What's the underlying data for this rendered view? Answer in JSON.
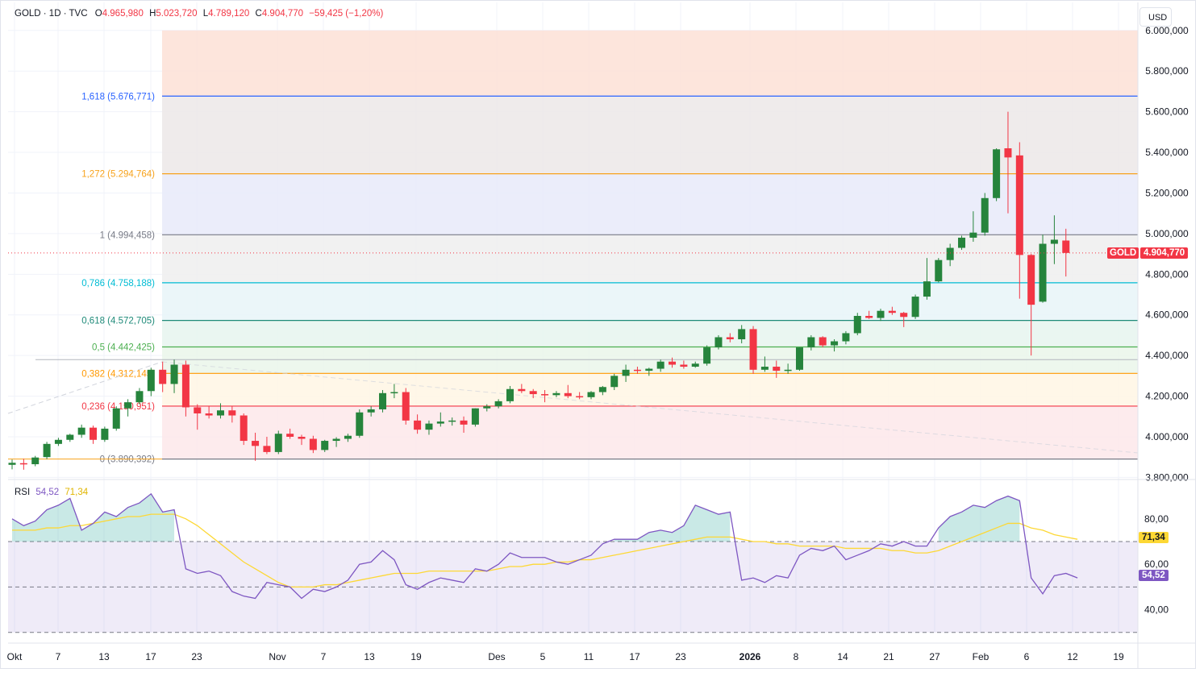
{
  "legend": {
    "symbol": "GOLD · 1D · TVC",
    "o_label": "O",
    "o_value": "4.965,980",
    "h_label": "H",
    "h_value": "5.023,720",
    "l_label": "L",
    "l_value": "4.789,120",
    "c_label": "C",
    "c_value": "4.904,770",
    "change": "−59,425 (−1,20%)"
  },
  "rsi_legend": {
    "name": "RSI",
    "rsi_value": "54,52",
    "ma_value": "71,34"
  },
  "currency": "USD",
  "price_badge": {
    "label": "GOLD",
    "value": "4.904,770"
  },
  "colors": {
    "up": "#26843c",
    "down": "#f23645",
    "rsi_line": "#7e57c2",
    "rsi_ma": "#fdd835",
    "last_price": "#f23645"
  },
  "chart_data": [
    {
      "type": "candlestick",
      "symbol": "GOLD",
      "timeframe": "1D",
      "y_axis_ticks": [
        "3.800,000",
        "4.000,000",
        "4.200,000",
        "4.400,000",
        "4.600,000",
        "4.800,000",
        "5.000,000",
        "5.200,000",
        "5.400,000",
        "5.600,000",
        "5.800,000",
        "6.000,000"
      ],
      "y_tick_values": [
        3800,
        4000,
        4200,
        4400,
        4600,
        4800,
        5000,
        5200,
        5400,
        5600,
        5800,
        6000
      ],
      "ylim": [
        3790,
        6000
      ],
      "x_axis_labels": [
        "Okt",
        "7",
        "13",
        "17",
        "23",
        "Nov",
        "7",
        "13",
        "19",
        "Des",
        "5",
        "11",
        "17",
        "23",
        "2026",
        "8",
        "14",
        "21",
        "27",
        "Feb",
        "6",
        "12",
        "19"
      ],
      "fibonacci_levels": [
        {
          "label": "1,618 (5.676,771)",
          "value": 5676.771,
          "color": "#2962ff"
        },
        {
          "label": "1,272 (5.294,764)",
          "value": 5294.764,
          "color": "#f7a21b"
        },
        {
          "label": "1 (4.994,458)",
          "value": 4994.458,
          "color": "#787b86"
        },
        {
          "label": "0,786 (4.758,188)",
          "value": 4758.188,
          "color": "#00bcd4"
        },
        {
          "label": "0,618 (4.572,705)",
          "value": 4572.705,
          "color": "#1e8a79"
        },
        {
          "label": "0,5 (4.442,425)",
          "value": 4442.425,
          "color": "#4caf50"
        },
        {
          "label": "0,382 (4.312,145)",
          "value": 4312.145,
          "color": "#ff9800"
        },
        {
          "label": "0,236 (4.150,951)",
          "value": 4150.951,
          "color": "#f23645"
        },
        {
          "label": "0 (3.890,392)",
          "value": 3890.392,
          "color": "#787b86"
        }
      ],
      "last_price": 4904.77,
      "candles": [
        {
          "o": 3862,
          "h": 3888,
          "l": 3840,
          "c": 3872
        },
        {
          "o": 3870,
          "h": 3892,
          "l": 3838,
          "c": 3865
        },
        {
          "o": 3865,
          "h": 3906,
          "l": 3855,
          "c": 3898
        },
        {
          "o": 3900,
          "h": 3975,
          "l": 3890,
          "c": 3965
        },
        {
          "o": 3965,
          "h": 3995,
          "l": 3955,
          "c": 3985
        },
        {
          "o": 3985,
          "h": 4015,
          "l": 3975,
          "c": 4010
        },
        {
          "o": 4010,
          "h": 4060,
          "l": 3995,
          "c": 4045
        },
        {
          "o": 4045,
          "h": 4055,
          "l": 3965,
          "c": 3985
        },
        {
          "o": 3985,
          "h": 4050,
          "l": 3975,
          "c": 4040
        },
        {
          "o": 4040,
          "h": 4150,
          "l": 4030,
          "c": 4140
        },
        {
          "o": 4140,
          "h": 4185,
          "l": 4100,
          "c": 4170
        },
        {
          "o": 4170,
          "h": 4240,
          "l": 4160,
          "c": 4225
        },
        {
          "o": 4225,
          "h": 4340,
          "l": 4200,
          "c": 4330
        },
        {
          "o": 4330,
          "h": 4370,
          "l": 4220,
          "c": 4260
        },
        {
          "o": 4260,
          "h": 4380,
          "l": 4215,
          "c": 4355
        },
        {
          "o": 4355,
          "h": 4375,
          "l": 4100,
          "c": 4145
        },
        {
          "o": 4145,
          "h": 4160,
          "l": 4035,
          "c": 4115
        },
        {
          "o": 4115,
          "h": 4150,
          "l": 4090,
          "c": 4105
        },
        {
          "o": 4105,
          "h": 4165,
          "l": 4090,
          "c": 4130
        },
        {
          "o": 4130,
          "h": 4150,
          "l": 4070,
          "c": 4105
        },
        {
          "o": 4105,
          "h": 4115,
          "l": 3960,
          "c": 3980
        },
        {
          "o": 3980,
          "h": 4020,
          "l": 3882,
          "c": 3955
        },
        {
          "o": 3955,
          "h": 4000,
          "l": 3915,
          "c": 3925
        },
        {
          "o": 3925,
          "h": 4030,
          "l": 3915,
          "c": 4015
        },
        {
          "o": 4015,
          "h": 4040,
          "l": 3990,
          "c": 4000
        },
        {
          "o": 4000,
          "h": 4010,
          "l": 3960,
          "c": 3990
        },
        {
          "o": 3990,
          "h": 4005,
          "l": 3920,
          "c": 3935
        },
        {
          "o": 3935,
          "h": 3985,
          "l": 3925,
          "c": 3980
        },
        {
          "o": 3980,
          "h": 3998,
          "l": 3950,
          "c": 3990
        },
        {
          "o": 3990,
          "h": 4015,
          "l": 3975,
          "c": 4005
        },
        {
          "o": 4005,
          "h": 4135,
          "l": 3995,
          "c": 4120
        },
        {
          "o": 4120,
          "h": 4150,
          "l": 4100,
          "c": 4135
        },
        {
          "o": 4135,
          "h": 4230,
          "l": 4120,
          "c": 4215
        },
        {
          "o": 4215,
          "h": 4260,
          "l": 4190,
          "c": 4220
        },
        {
          "o": 4220,
          "h": 4240,
          "l": 4060,
          "c": 4080
        },
        {
          "o": 4080,
          "h": 4110,
          "l": 4015,
          "c": 4035
        },
        {
          "o": 4035,
          "h": 4080,
          "l": 4010,
          "c": 4065
        },
        {
          "o": 4065,
          "h": 4120,
          "l": 4050,
          "c": 4075
        },
        {
          "o": 4075,
          "h": 4095,
          "l": 4055,
          "c": 4080
        },
        {
          "o": 4080,
          "h": 4100,
          "l": 4020,
          "c": 4060
        },
        {
          "o": 4060,
          "h": 4140,
          "l": 4050,
          "c": 4140
        },
        {
          "o": 4140,
          "h": 4160,
          "l": 4125,
          "c": 4150
        },
        {
          "o": 4150,
          "h": 4185,
          "l": 4140,
          "c": 4175
        },
        {
          "o": 4175,
          "h": 4250,
          "l": 4165,
          "c": 4235
        },
        {
          "o": 4235,
          "h": 4260,
          "l": 4215,
          "c": 4225
        },
        {
          "o": 4225,
          "h": 4235,
          "l": 4190,
          "c": 4210
        },
        {
          "o": 4210,
          "h": 4230,
          "l": 4170,
          "c": 4205
        },
        {
          "o": 4205,
          "h": 4225,
          "l": 4195,
          "c": 4215
        },
        {
          "o": 4215,
          "h": 4255,
          "l": 4190,
          "c": 4200
        },
        {
          "o": 4200,
          "h": 4220,
          "l": 4185,
          "c": 4195
        },
        {
          "o": 4195,
          "h": 4225,
          "l": 4185,
          "c": 4220
        },
        {
          "o": 4220,
          "h": 4250,
          "l": 4205,
          "c": 4245
        },
        {
          "o": 4245,
          "h": 4310,
          "l": 4230,
          "c": 4300
        },
        {
          "o": 4300,
          "h": 4355,
          "l": 4270,
          "c": 4330
        },
        {
          "o": 4330,
          "h": 4345,
          "l": 4310,
          "c": 4325
        },
        {
          "o": 4325,
          "h": 4340,
          "l": 4300,
          "c": 4335
        },
        {
          "o": 4335,
          "h": 4380,
          "l": 4320,
          "c": 4370
        },
        {
          "o": 4370,
          "h": 4390,
          "l": 4340,
          "c": 4355
        },
        {
          "o": 4355,
          "h": 4375,
          "l": 4335,
          "c": 4345
        },
        {
          "o": 4345,
          "h": 4370,
          "l": 4340,
          "c": 4360
        },
        {
          "o": 4360,
          "h": 4450,
          "l": 4350,
          "c": 4440
        },
        {
          "o": 4440,
          "h": 4500,
          "l": 4430,
          "c": 4490
        },
        {
          "o": 4490,
          "h": 4510,
          "l": 4465,
          "c": 4480
        },
        {
          "o": 4480,
          "h": 4550,
          "l": 4460,
          "c": 4530
        },
        {
          "o": 4530,
          "h": 4545,
          "l": 4310,
          "c": 4330
        },
        {
          "o": 4330,
          "h": 4395,
          "l": 4320,
          "c": 4345
        },
        {
          "o": 4345,
          "h": 4375,
          "l": 4290,
          "c": 4325
        },
        {
          "o": 4325,
          "h": 4360,
          "l": 4310,
          "c": 4330
        },
        {
          "o": 4330,
          "h": 4440,
          "l": 4325,
          "c": 4440
        },
        {
          "o": 4440,
          "h": 4500,
          "l": 4425,
          "c": 4490
        },
        {
          "o": 4490,
          "h": 4495,
          "l": 4440,
          "c": 4450
        },
        {
          "o": 4450,
          "h": 4480,
          "l": 4420,
          "c": 4470
        },
        {
          "o": 4470,
          "h": 4520,
          "l": 4455,
          "c": 4510
        },
        {
          "o": 4510,
          "h": 4610,
          "l": 4500,
          "c": 4595
        },
        {
          "o": 4595,
          "h": 4620,
          "l": 4580,
          "c": 4585
        },
        {
          "o": 4585,
          "h": 4630,
          "l": 4570,
          "c": 4620
        },
        {
          "o": 4620,
          "h": 4640,
          "l": 4600,
          "c": 4610
        },
        {
          "o": 4610,
          "h": 4615,
          "l": 4540,
          "c": 4590
        },
        {
          "o": 4590,
          "h": 4700,
          "l": 4580,
          "c": 4690
        },
        {
          "o": 4690,
          "h": 4880,
          "l": 4675,
          "c": 4765
        },
        {
          "o": 4765,
          "h": 4880,
          "l": 4760,
          "c": 4870
        },
        {
          "o": 4870,
          "h": 4950,
          "l": 4840,
          "c": 4930
        },
        {
          "o": 4930,
          "h": 4990,
          "l": 4920,
          "c": 4980
        },
        {
          "o": 4980,
          "h": 5110,
          "l": 4960,
          "c": 5005
        },
        {
          "o": 5005,
          "h": 5200,
          "l": 4990,
          "c": 5175
        },
        {
          "o": 5175,
          "h": 5420,
          "l": 5160,
          "c": 5415
        },
        {
          "o": 5420,
          "h": 5600,
          "l": 5100,
          "c": 5375
        },
        {
          "o": 5385,
          "h": 5450,
          "l": 4680,
          "c": 4895
        },
        {
          "o": 4895,
          "h": 4900,
          "l": 4400,
          "c": 4650
        },
        {
          "o": 4665,
          "h": 4995,
          "l": 4660,
          "c": 4950
        },
        {
          "o": 4950,
          "h": 5090,
          "l": 4850,
          "c": 4970
        },
        {
          "o": 4966,
          "h": 5024,
          "l": 4789,
          "c": 4905
        }
      ]
    },
    {
      "type": "line",
      "title": "RSI",
      "y_axis_ticks": [
        "40,00",
        "60,00",
        "80,00"
      ],
      "y_tick_values": [
        40,
        60,
        80
      ],
      "ylim": [
        25,
        92
      ],
      "upper_band": 70,
      "lower_band": 50,
      "bottom_band": 30,
      "series": [
        {
          "name": "RSI",
          "color": "#7e57c2",
          "values": [
            80,
            77,
            79,
            84,
            86,
            89,
            75,
            78,
            83,
            81,
            85,
            87,
            91,
            83,
            84,
            58,
            56,
            57,
            55,
            48,
            46,
            45,
            52,
            51,
            50,
            45,
            49,
            48,
            50,
            53,
            60,
            61,
            66,
            62,
            51,
            49,
            52,
            54,
            53,
            52,
            58,
            57,
            60,
            65,
            63,
            63,
            63,
            61,
            60,
            62,
            64,
            69,
            71,
            71,
            71,
            74,
            75,
            74,
            77,
            86,
            84,
            82,
            83,
            53,
            54,
            52,
            55,
            54,
            64,
            67,
            66,
            68,
            62,
            64,
            66,
            69,
            68,
            70,
            68,
            68,
            76,
            81,
            83,
            86,
            85,
            88,
            90,
            88,
            54,
            47,
            55,
            56,
            54
          ],
          "last": 54.52
        },
        {
          "name": "MA",
          "color": "#fdd835",
          "values": [
            75,
            75,
            75,
            76,
            76,
            77,
            77,
            78,
            79,
            80,
            81,
            81,
            82,
            82,
            82,
            80,
            77,
            73,
            69,
            65,
            61,
            58,
            55,
            52,
            50,
            50,
            50,
            51,
            51,
            52,
            53,
            54,
            55,
            56,
            56,
            56,
            57,
            57,
            57,
            57,
            57,
            57,
            58,
            59,
            59,
            60,
            60,
            61,
            61,
            62,
            62,
            63,
            64,
            65,
            66,
            67,
            68,
            69,
            70,
            71,
            72,
            72,
            72,
            71,
            70,
            70,
            69,
            69,
            68,
            68,
            68,
            68,
            67,
            67,
            67,
            67,
            66,
            66,
            65,
            65,
            66,
            68,
            70,
            72,
            74,
            76,
            78,
            78,
            76,
            75,
            73,
            72,
            71
          ],
          "last": 71.34
        }
      ]
    }
  ]
}
